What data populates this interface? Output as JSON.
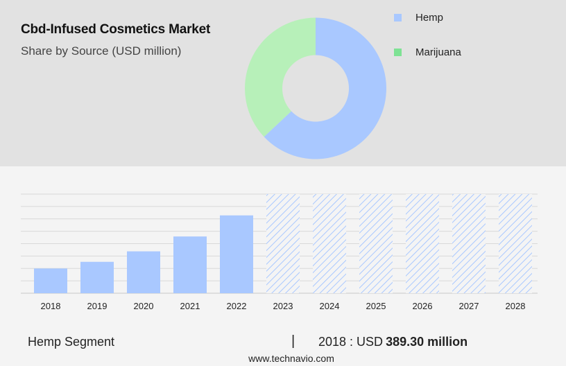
{
  "header": {
    "title": "Cbd-Infused Cosmetics Market",
    "subtitle": "Share by Source (USD million)"
  },
  "legend": [
    {
      "label": "Hemp",
      "color": "#a9c8ff"
    },
    {
      "label": "Marijuana",
      "color": "#7ee294"
    }
  ],
  "footer": {
    "segment": "Hemp Segment",
    "separator": "|",
    "value_prefix": "2018 : USD",
    "value_bold": "389.30 million",
    "source": "www.technavio.com"
  },
  "chart_data": [
    {
      "type": "pie",
      "donut": true,
      "slices": [
        {
          "label": "Hemp",
          "value": 63,
          "color": "#a9c8ff"
        },
        {
          "label": "Marijuana",
          "value": 37,
          "color": "#b7f0b9"
        }
      ]
    },
    {
      "type": "bar",
      "categories": [
        "2018",
        "2019",
        "2020",
        "2021",
        "2022",
        "2023",
        "2024",
        "2025",
        "2026",
        "2027",
        "2028"
      ],
      "values": [
        389.3,
        494,
        659,
        893,
        1225,
        1560,
        1560,
        1560,
        1560,
        1560,
        1560
      ],
      "forecast": [
        false,
        false,
        false,
        false,
        false,
        true,
        true,
        true,
        true,
        true,
        true
      ],
      "series_name": "Hemp",
      "color": "#a9c8ff",
      "ylim": [
        0,
        1560
      ],
      "grid": true
    }
  ]
}
